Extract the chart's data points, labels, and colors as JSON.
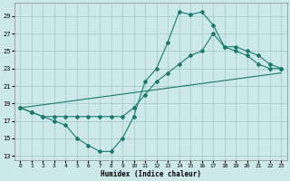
{
  "xlabel": "Humidex (Indice chaleur)",
  "bg_color": "#cce8e8",
  "grid_color": "#aacccc",
  "line_color": "#1a7a6e",
  "xlim": [
    -0.5,
    23.5
  ],
  "ylim": [
    12.5,
    30.5
  ],
  "yticks": [
    13,
    15,
    17,
    19,
    21,
    23,
    25,
    27,
    29
  ],
  "xticks": [
    0,
    1,
    2,
    3,
    4,
    5,
    6,
    7,
    8,
    9,
    10,
    11,
    12,
    13,
    14,
    15,
    16,
    17,
    18,
    19,
    20,
    21,
    22,
    23
  ],
  "line1_x": [
    0,
    1,
    2,
    3,
    4,
    5,
    6,
    7,
    8,
    9,
    10,
    11,
    12,
    13,
    14,
    15,
    16,
    17,
    18,
    19,
    20,
    21,
    22,
    23
  ],
  "line1_y": [
    18.5,
    18.0,
    17.5,
    17.0,
    16.5,
    15.0,
    14.2,
    13.5,
    13.5,
    15.0,
    17.5,
    21.5,
    23.0,
    26.0,
    29.5,
    29.2,
    29.5,
    28.0,
    25.5,
    25.0,
    24.5,
    23.5,
    23.0,
    23.0
  ],
  "line2_x": [
    0,
    1,
    2,
    3,
    4,
    5,
    6,
    7,
    8,
    9,
    10,
    11,
    12,
    13,
    14,
    15,
    16,
    17,
    18,
    19,
    20,
    21,
    22,
    23
  ],
  "line2_y": [
    18.5,
    18.0,
    17.5,
    17.5,
    17.5,
    17.5,
    17.5,
    17.5,
    17.5,
    17.5,
    18.5,
    20.0,
    21.5,
    22.5,
    23.5,
    24.5,
    25.0,
    27.0,
    25.5,
    25.5,
    25.0,
    24.5,
    23.5,
    23.0
  ],
  "line3_x": [
    0,
    23
  ],
  "line3_y": [
    18.5,
    22.5
  ]
}
